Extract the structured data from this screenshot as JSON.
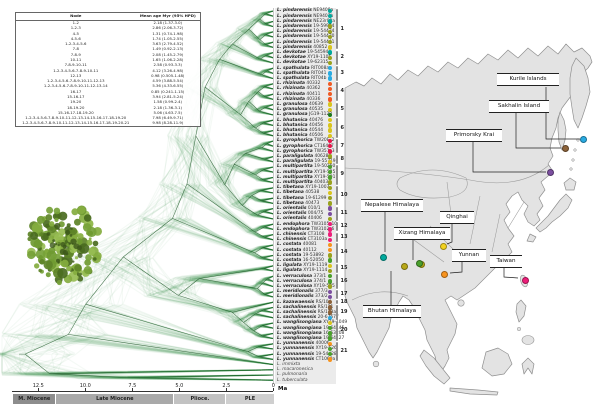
{
  "node_table": {
    "headers": [
      "Node",
      "Mean age Myr (95% HPD)"
    ],
    "rows": [
      [
        "1-2",
        "2.18 (1.37-3.0)"
      ],
      [
        "1-2-3",
        "2.86 (2.06-3.72)"
      ],
      [
        "4-5",
        "1.31 (0.74-1.98)"
      ],
      [
        "4-5-6",
        "1.74 (1.05-2.55)"
      ],
      [
        "1-2-3-4-5-6",
        "3.63 (2.79-4.52)"
      ],
      [
        "7-8",
        "1.49 (0.92-2.13)"
      ],
      [
        "7-8-9",
        "2.08 (1.45-2.79)"
      ],
      [
        "10-11",
        "1.65 (1.06-2.28)"
      ],
      [
        "7-8-9-10-11",
        "2.58 (0.93-3.3)"
      ],
      [
        "1-2-3-4-5-6-7-8-9-10-11",
        "4.12 (3.26-4.98)"
      ],
      [
        "12-13",
        "0.98 (0.505-1.48)"
      ],
      [
        "1-2-3-4-5-6-7-8-9-10-11-12-13",
        "4.59 (3.88-5.54)"
      ],
      [
        "1-2-3-4-5-6-7-8-9-10-11-12-13-14",
        "5.36 (4.33-6.55)"
      ],
      [
        "16-17",
        "0.85 (0.241-1.15)"
      ],
      [
        "15-16-17",
        "3.94 (2.81-5.24)"
      ],
      [
        "19-20",
        "1.58 (0.99-2.4)"
      ],
      [
        "18-19-20",
        "2.18 (1.36-3.1)"
      ],
      [
        "15-16-17-18-19-20",
        "5.06 (4.63-7.5)"
      ],
      [
        "1-2-3-4-5-6-7-8-9-10-11-12-13-14-15-16-17-18-19-20",
        "7.98 (6.49-9.71)"
      ],
      [
        "1-2-3-4-5-6-7-8-9-10-11-12-13-14-15-16-17-18-19-20-21",
        "9.98 (8.28-11.9)"
      ]
    ]
  },
  "tree": {
    "genus_abbr": "L.",
    "tips": [
      {
        "group": 1,
        "species": "pindarensis",
        "code": "NE9408a",
        "dot": "#00a99d"
      },
      {
        "group": 1,
        "species": "pindarensis",
        "code": "NE9407b",
        "dot": "#00a99d"
      },
      {
        "group": 1,
        "species": "pindarensis",
        "code": "NE23r02a",
        "dot": "#00a99d"
      },
      {
        "group": 1,
        "species": "pindarensis",
        "code": "19-59994",
        "dot": "#9aa21e"
      },
      {
        "group": 1,
        "species": "pindarensis",
        "code": "19-54424",
        "dot": "#9aa21e"
      },
      {
        "group": 1,
        "species": "pindarensis",
        "code": "19-54430",
        "dot": "#9aa21e"
      },
      {
        "group": 1,
        "species": "pindarensis",
        "code": "19-54441",
        "dot": "#9aa21e"
      },
      {
        "group": 1,
        "species": "pindarensis",
        "code": "40852",
        "dot": "#d9c41d"
      },
      {
        "group": 2,
        "species": "devkotae",
        "code": "19-54594",
        "dot": "#00a99d"
      },
      {
        "group": 2,
        "species": "devkotae",
        "code": "XY19-1105",
        "dot": "#9aa21e"
      },
      {
        "group": 2,
        "species": "devkotae",
        "code": "19-62315",
        "dot": "#9aa21e"
      },
      {
        "group": 3,
        "species": "spathulata",
        "code": "RIT008a",
        "dot": "#29abe2"
      },
      {
        "group": 3,
        "species": "spathulata",
        "code": "RIT041",
        "dot": "#29abe2"
      },
      {
        "group": 3,
        "species": "spathulata",
        "code": "RIT04b",
        "dot": "#29abe2"
      },
      {
        "group": 4,
        "species": "rhizinata",
        "code": "40332",
        "dot": "#f15a24"
      },
      {
        "group": 4,
        "species": "rhizinata",
        "code": "40362",
        "dot": "#f15a24"
      },
      {
        "group": 4,
        "species": "rhizinata",
        "code": "40411",
        "dot": "#f15a24"
      },
      {
        "group": 4,
        "species": "rhizinata",
        "code": "40336",
        "dot": "#f15a24"
      },
      {
        "group": 5,
        "species": "granulosa",
        "code": "40639",
        "dot": "#d9c41d"
      },
      {
        "group": 5,
        "species": "granulosa",
        "code": "40535",
        "dot": "#d9c41d"
      },
      {
        "group": 5,
        "species": "granulosa",
        "code": "JG19-1128",
        "dot": "#1c7a1c"
      },
      {
        "group": 6,
        "species": "bhutanica",
        "code": "40476",
        "dot": "#d9c41d"
      },
      {
        "group": 6,
        "species": "bhutanica",
        "code": "40456",
        "dot": "#d9c41d"
      },
      {
        "group": 6,
        "species": "bhutanica",
        "code": "40544",
        "dot": "#d9c41d"
      },
      {
        "group": 6,
        "species": "bhutanica",
        "code": "40506",
        "dot": "#d9c41d"
      },
      {
        "group": 7,
        "species": "gyrophorica",
        "code": "TW20E_2",
        "dot": "#e8174b"
      },
      {
        "group": 7,
        "species": "gyrophorica",
        "code": "CT16497",
        "dot": "#e8174b"
      },
      {
        "group": 7,
        "species": "gyrophorica",
        "code": "TW351_3",
        "dot": "#e8174b"
      },
      {
        "group": 8,
        "species": "paraligulata",
        "code": "40628",
        "dot": "#9aa21e"
      },
      {
        "group": 8,
        "species": "paraligulata",
        "code": "19-55719",
        "dot": "#d9c41d"
      },
      {
        "group": 9,
        "species": "multipartita",
        "code": "19-50250",
        "dot": "#4aa02c"
      },
      {
        "group": 9,
        "species": "multipartita",
        "code": "XY19-525",
        "dot": "#4aa02c"
      },
      {
        "group": 9,
        "species": "multipartita",
        "code": "XY19-501",
        "dot": "#4aa02c"
      },
      {
        "group": 9,
        "species": "multipartita",
        "code": "40403",
        "dot": "#9aa21e"
      },
      {
        "group": 10,
        "species": "tibetana",
        "code": "XY19-1007",
        "dot": "#9aa21e"
      },
      {
        "group": 10,
        "species": "tibetana",
        "code": "40538",
        "dot": "#d9c41d"
      },
      {
        "group": 10,
        "species": "tibetana",
        "code": "19-61299",
        "dot": "#9aa21e"
      },
      {
        "group": 10,
        "species": "tibetana",
        "code": "40473",
        "dot": "#9aa21e"
      },
      {
        "group": 11,
        "species": "orientalis",
        "code": "010/1",
        "dot": "#7c4fa0"
      },
      {
        "group": 11,
        "species": "orientalis",
        "code": "004/75",
        "dot": "#7c4fa0"
      },
      {
        "group": 11,
        "species": "orientalis",
        "code": "40406",
        "dot": "#9aa21e"
      },
      {
        "group": 12,
        "species": "endophora",
        "code": "TW3105_10",
        "dot": "#ed1e79"
      },
      {
        "group": 12,
        "species": "endophora",
        "code": "TW3102_6",
        "dot": "#ed1e79"
      },
      {
        "group": 13,
        "species": "chinensis",
        "code": "CT3108",
        "dot": "#ed1e79"
      },
      {
        "group": 13,
        "species": "chinensis",
        "code": "CT3103a",
        "dot": "#ed1e79"
      },
      {
        "group": 14,
        "species": "costata",
        "code": "40081",
        "dot": "#f7931e"
      },
      {
        "group": 14,
        "species": "costata",
        "code": "40112",
        "dot": "#f7931e"
      },
      {
        "group": 14,
        "species": "costata",
        "code": "19-53892",
        "dot": "#9aa21e"
      },
      {
        "group": 14,
        "species": "costata",
        "code": "16-52050",
        "dot": "#4aa02c"
      },
      {
        "group": 15,
        "species": "ligulata",
        "code": "XY19-1119",
        "dot": "#d9c41d"
      },
      {
        "group": 15,
        "species": "ligulata",
        "code": "XY19-1114",
        "dot": "#9aa21e"
      },
      {
        "group": 16,
        "species": "verruculosa",
        "code": "373/1",
        "dot": "#4aa02c"
      },
      {
        "group": 16,
        "species": "verruculosa",
        "code": "374/1",
        "dot": "#4aa02c"
      },
      {
        "group": 16,
        "species": "verruculosa",
        "code": "XY19-505",
        "dot": "#9aa21e"
      },
      {
        "group": 17,
        "species": "meridionalis",
        "code": "377/3",
        "dot": "#7c4fa0"
      },
      {
        "group": 17,
        "species": "meridionalis",
        "code": "373/2",
        "dot": "#7c4fa0"
      },
      {
        "group": 18,
        "species": "kazawaensis",
        "code": "RS/104",
        "dot": "#8c6239"
      },
      {
        "group": 19,
        "species": "sachalinensis",
        "code": "RS/121",
        "dot": "#8c6239"
      },
      {
        "group": 19,
        "species": "sachalinensis",
        "code": "RS/113a",
        "dot": "#8c6239"
      },
      {
        "group": 19,
        "species": "sachalinensis",
        "code": "20-67677",
        "dot": "#29abe2"
      },
      {
        "group": 20,
        "species": "wanglisongiana",
        "code": "XY19-1049",
        "dot": "#d9c41d"
      },
      {
        "group": 20,
        "species": "wanglisongiana",
        "code": "19-64445",
        "dot": "#4aa02c"
      },
      {
        "group": 20,
        "species": "wanglisongiana",
        "code": "16-53208",
        "dot": "#4aa02c"
      },
      {
        "group": 20,
        "species": "wanglisongiana",
        "code": "19-64427",
        "dot": "#4aa02c"
      },
      {
        "group": 21,
        "species": "yunnanensis",
        "code": "40006",
        "dot": "#f7931e"
      },
      {
        "group": 21,
        "species": "yunnanensis",
        "code": "XY19-526",
        "dot": "#4aa02c"
      },
      {
        "group": 21,
        "species": "yunnanensis",
        "code": "19-54428",
        "dot": "#4aa02c"
      },
      {
        "group": 21,
        "species": "yunnanensis",
        "code": "CT1060a",
        "dot": "#f7931e"
      },
      {
        "group": null,
        "species": "immixta",
        "code": "",
        "dot": null
      },
      {
        "group": null,
        "species": "macaronesica",
        "code": "",
        "dot": null
      },
      {
        "group": null,
        "species": "pulmonaria",
        "code": "",
        "dot": null
      },
      {
        "group": null,
        "species": "tuberculata",
        "code": "",
        "dot": null
      }
    ]
  },
  "axis": {
    "tick_labels": [
      "12.5",
      "10.0",
      "7.5",
      "5.0",
      "2.5",
      "0"
    ],
    "unit": "Ma",
    "epochs": [
      "M. Miocene",
      "Late Miocene",
      "Plioce.",
      "PLE"
    ]
  },
  "map": {
    "regions": [
      {
        "name": "Kurile Islands",
        "color": "#29abe2"
      },
      {
        "name": "Sakhalin Island",
        "color": "#8c6239"
      },
      {
        "name": "Primorsky Krai",
        "color": "#7c4fa0"
      },
      {
        "name": "Nepalese Himalaya",
        "color": "#00a99d"
      },
      {
        "name": "Qinghai",
        "color": "#f2d21f"
      },
      {
        "name": "Xizang Himalaya",
        "color": "#4aa02c"
      },
      {
        "name": "Yunnan",
        "color": "#f7931e"
      },
      {
        "name": "Taiwan",
        "color": "#ed1e79"
      },
      {
        "name": "Bhutan Himalaya",
        "color": "#b8a818"
      }
    ]
  },
  "colors": {
    "cloud": "#2f8f3f",
    "consensus": "#14501e",
    "land": "#e3e3e3",
    "border": "#8f8f8f"
  }
}
